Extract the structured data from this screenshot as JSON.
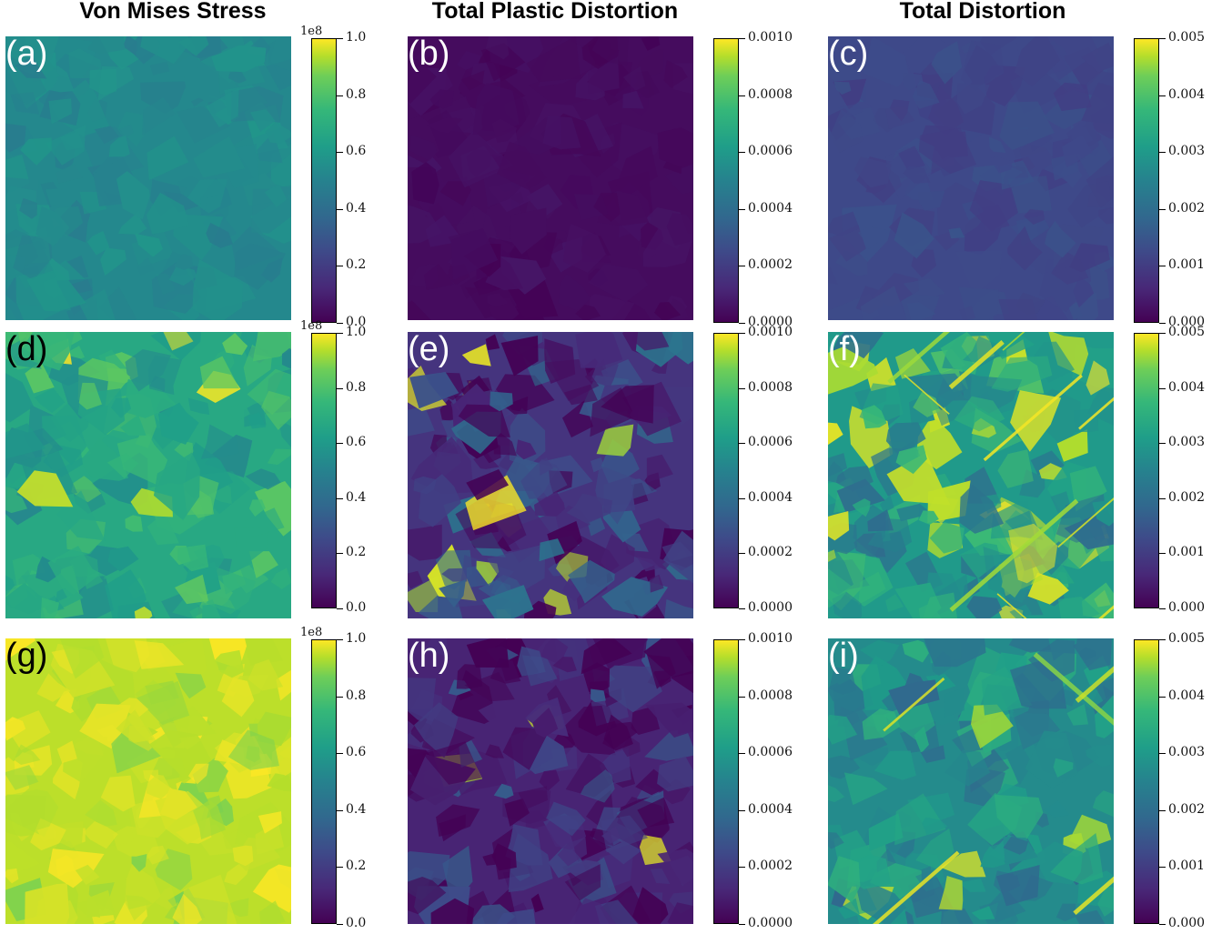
{
  "column_titles": [
    "Von Mises Stress",
    "Total Plastic Distortion",
    "Total Distortion"
  ],
  "colormap": [
    "#440154",
    "#482878",
    "#3e4a89",
    "#31688e",
    "#26828e",
    "#1f9e89",
    "#35b779",
    "#6ece58",
    "#b5de2b",
    "#fde725"
  ],
  "chart_data": [
    {
      "panel": "(a)",
      "type": "heatmap",
      "title": "Von Mises Stress",
      "colorbar_offset": "1e8",
      "colorbar_ticks": [
        "0.0",
        "0.2",
        "0.4",
        "0.6",
        "0.8",
        "1.0"
      ],
      "vmin": 0,
      "vmax": 1.0,
      "field_mean": 0.47,
      "field_spread": 0.06,
      "hotspot_fraction": 0.0
    },
    {
      "panel": "(b)",
      "type": "heatmap",
      "title": "Total Plastic Distortion",
      "colorbar_ticks": [
        "0.0000",
        "0.0002",
        "0.0004",
        "0.0006",
        "0.0008",
        "0.0010"
      ],
      "vmin": 0,
      "vmax": 0.001,
      "field_mean": 3e-05,
      "field_spread": 3e-05,
      "hotspot_fraction": 0.0
    },
    {
      "panel": "(c)",
      "type": "heatmap",
      "title": "Total Distortion",
      "colorbar_ticks": [
        "0.000",
        "0.001",
        "0.002",
        "0.003",
        "0.004",
        "0.005"
      ],
      "vmin": 0,
      "vmax": 0.005,
      "field_mean": 0.0011,
      "field_spread": 0.0002,
      "hotspot_fraction": 0.0
    },
    {
      "panel": "(d)",
      "type": "heatmap",
      "colorbar_offset": "1e8",
      "colorbar_ticks": [
        "0.0",
        "0.2",
        "0.4",
        "0.6",
        "0.8",
        "1.0"
      ],
      "vmin": 0,
      "vmax": 1.0,
      "field_mean": 0.6,
      "field_spread": 0.15,
      "hotspot_fraction": 0.05
    },
    {
      "panel": "(e)",
      "type": "heatmap",
      "colorbar_ticks": [
        "0.0000",
        "0.0002",
        "0.0004",
        "0.0006",
        "0.0008",
        "0.0010"
      ],
      "vmin": 0,
      "vmax": 0.001,
      "field_mean": 0.00015,
      "field_spread": 0.00025,
      "hotspot_fraction": 0.06
    },
    {
      "panel": "(f)",
      "type": "heatmap",
      "colorbar_ticks": [
        "0.000",
        "0.001",
        "0.002",
        "0.003",
        "0.004",
        "0.005"
      ],
      "vmin": 0,
      "vmax": 0.005,
      "field_mean": 0.0027,
      "field_spread": 0.0011,
      "hotspot_fraction": 0.2
    },
    {
      "panel": "(g)",
      "type": "heatmap",
      "colorbar_offset": "1e8",
      "colorbar_ticks": [
        "0.0",
        "0.2",
        "0.4",
        "0.6",
        "0.8",
        "1.0"
      ],
      "vmin": 0,
      "vmax": 1.0,
      "field_mean": 0.9,
      "field_spread": 0.12,
      "hotspot_fraction": 0.45
    },
    {
      "panel": "(h)",
      "type": "heatmap",
      "colorbar_ticks": [
        "0.0000",
        "0.0002",
        "0.0004",
        "0.0006",
        "0.0008",
        "0.0010"
      ],
      "vmin": 0,
      "vmax": 0.001,
      "field_mean": 0.0001,
      "field_spread": 0.0002,
      "hotspot_fraction": 0.03
    },
    {
      "panel": "(i)",
      "type": "heatmap",
      "colorbar_ticks": [
        "0.000",
        "0.001",
        "0.002",
        "0.003",
        "0.004",
        "0.005"
      ],
      "vmin": 0,
      "vmax": 0.005,
      "field_mean": 0.0024,
      "field_spread": 0.0008,
      "hotspot_fraction": 0.1
    }
  ]
}
